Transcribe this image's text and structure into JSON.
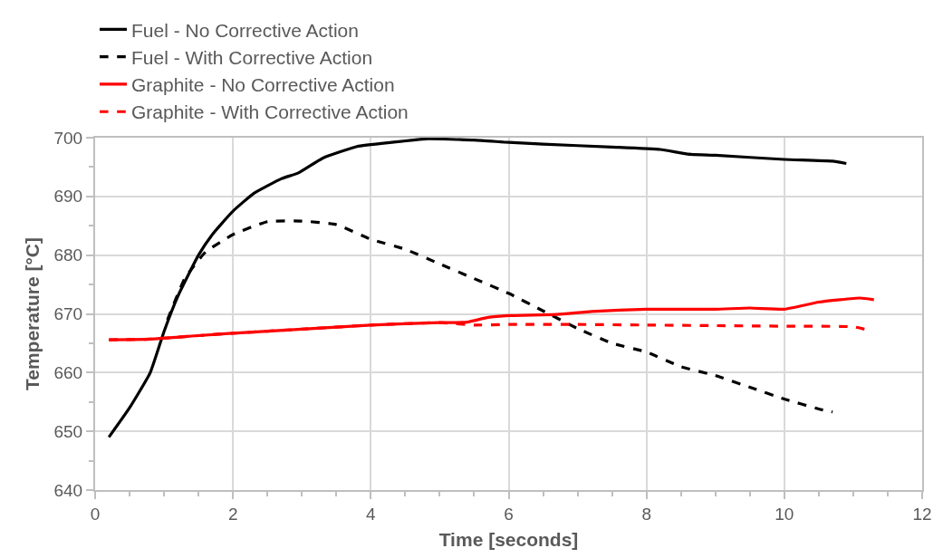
{
  "chart_data": {
    "type": "line",
    "xlabel": "Time [seconds]",
    "ylabel": "Temperature [°C]",
    "xlim": [
      0,
      12
    ],
    "xticks": [
      0,
      2,
      4,
      6,
      8,
      10,
      12
    ],
    "ylim": [
      640,
      700
    ],
    "yticks": [
      640,
      650,
      660,
      670,
      680,
      690,
      700
    ],
    "grid": true,
    "legend": "top",
    "marker": "none",
    "series": [
      {
        "name": "Fuel - No Corrective Action",
        "color": "#000000",
        "line_style": "solid",
        "x": [
          0.2,
          0.5,
          0.8,
          1.0,
          1.2,
          1.5,
          1.7,
          2.0,
          2.3,
          2.7,
          2.95,
          3.3,
          3.8,
          4.3,
          4.8,
          5.5,
          6.0,
          6.5,
          7.5,
          8.2,
          8.6,
          9.0,
          10.0,
          10.7,
          10.9
        ],
        "values": [
          649,
          654,
          660,
          667,
          673,
          680,
          683.5,
          687.5,
          690.5,
          693,
          694,
          696.5,
          698.5,
          699.2,
          699.8,
          699.6,
          699.2,
          698.9,
          698.4,
          698.0,
          697.2,
          697,
          696.3,
          696,
          695.6
        ]
      },
      {
        "name": "Fuel - With Corrective Action",
        "color": "#000000",
        "line_style": "dashed",
        "x": [
          1.05,
          1.3,
          1.6,
          2.0,
          2.5,
          3.0,
          3.5,
          4.0,
          4.5,
          5.0,
          5.5,
          6.0,
          6.5,
          7.0,
          7.5,
          8.0,
          8.5,
          9.0,
          9.5,
          10.0,
          10.5,
          10.7
        ],
        "values": [
          669,
          676,
          680.5,
          683.5,
          685.7,
          685.8,
          685.2,
          682.7,
          681,
          678.5,
          676,
          673.5,
          670.5,
          667.5,
          665,
          663.5,
          661,
          659.5,
          657.5,
          655.5,
          653.8,
          653.3
        ]
      },
      {
        "name": "Graphite - No Corrective Action",
        "color": "#ff0000",
        "line_style": "solid",
        "x": [
          0.2,
          0.8,
          1.5,
          2.0,
          3.0,
          4.0,
          5.0,
          5.4,
          5.7,
          6.0,
          6.7,
          7.2,
          8.0,
          9.0,
          9.5,
          10.0,
          10.5,
          11.1,
          11.3
        ],
        "values": [
          665.6,
          665.7,
          666.3,
          666.7,
          667.4,
          668.1,
          668.5,
          668.6,
          669.4,
          669.7,
          669.9,
          670.4,
          670.8,
          670.8,
          671.0,
          670.8,
          672.0,
          672.7,
          672.4
        ]
      },
      {
        "name": "Graphite - With Corrective Action",
        "color": "#ff0000",
        "line_style": "dashed",
        "x": [
          0.2,
          0.8,
          1.5,
          2.0,
          3.0,
          4.0,
          5.0,
          5.5,
          6.0,
          7.0,
          8.0,
          9.0,
          10.0,
          11.0,
          11.2
        ],
        "values": [
          665.6,
          665.7,
          666.3,
          666.7,
          667.4,
          668.1,
          668.5,
          668.1,
          668.2,
          668.2,
          668.1,
          668.0,
          667.9,
          667.8,
          667.3
        ]
      }
    ]
  }
}
